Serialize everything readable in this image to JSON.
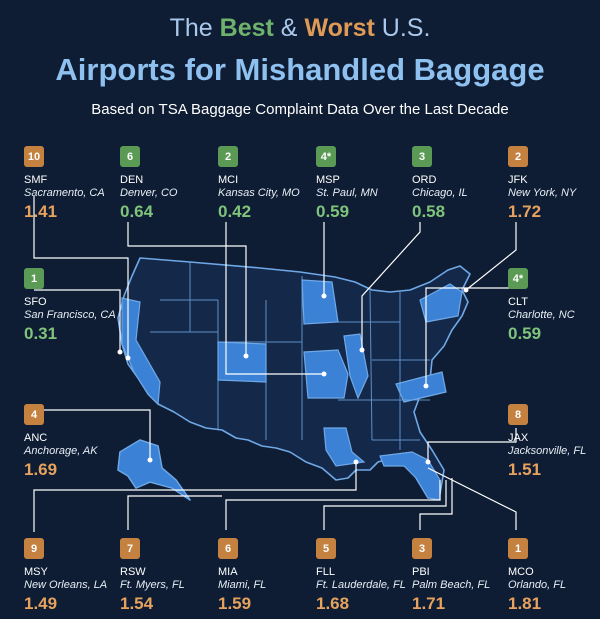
{
  "header": {
    "title_prefix": "The",
    "title_best": "Best",
    "title_amp": "&",
    "title_worst": "Worst",
    "title_suffix": "U.S.",
    "title_main": "Airports for Mishandled Baggage",
    "subtitle": "Based on TSA Baggage Complaint Data Over the Last Decade"
  },
  "colors": {
    "good": "#5a9a55",
    "bad": "#c5813f",
    "map": "#3b82d6",
    "background": "#0e1d33"
  },
  "airports": [
    {
      "rank": "10",
      "code": "SMF",
      "city": "Sacramento, CA",
      "rate": "1.41",
      "status": "bad"
    },
    {
      "rank": "6",
      "code": "DEN",
      "city": "Denver, CO",
      "rate": "0.64",
      "status": "good"
    },
    {
      "rank": "2",
      "code": "MCI",
      "city": "Kansas City, MO",
      "rate": "0.42",
      "status": "good"
    },
    {
      "rank": "4*",
      "code": "MSP",
      "city": "St. Paul, MN",
      "rate": "0.59",
      "status": "good"
    },
    {
      "rank": "3",
      "code": "ORD",
      "city": "Chicago, IL",
      "rate": "0.58",
      "status": "good"
    },
    {
      "rank": "2",
      "code": "JFK",
      "city": "New York, NY",
      "rate": "1.72",
      "status": "bad"
    },
    {
      "rank": "1",
      "code": "SFO",
      "city": "San Francisco, CA",
      "rate": "0.31",
      "status": "good"
    },
    {
      "rank": "4*",
      "code": "CLT",
      "city": "Charlotte, NC",
      "rate": "0.59",
      "status": "good"
    },
    {
      "rank": "4",
      "code": "ANC",
      "city": "Anchorage, AK",
      "rate": "1.69",
      "status": "bad"
    },
    {
      "rank": "8",
      "code": "JAX",
      "city": "Jacksonville, FL",
      "rate": "1.51",
      "status": "bad"
    },
    {
      "rank": "9",
      "code": "MSY",
      "city": "New Orleans, LA",
      "rate": "1.49",
      "status": "bad"
    },
    {
      "rank": "7",
      "code": "RSW",
      "city": "Ft. Myers, FL",
      "rate": "1.54",
      "status": "bad"
    },
    {
      "rank": "6",
      "code": "MIA",
      "city": "Miami, FL",
      "rate": "1.59",
      "status": "bad"
    },
    {
      "rank": "5",
      "code": "FLL",
      "city": "Ft. Lauderdale, FL",
      "rate": "1.68",
      "status": "bad"
    },
    {
      "rank": "3",
      "code": "PBI",
      "city": "Palm Beach, FL",
      "rate": "1.71",
      "status": "bad"
    },
    {
      "rank": "1",
      "code": "MCO",
      "city": "Orlando, FL",
      "rate": "1.81",
      "status": "bad"
    }
  ]
}
